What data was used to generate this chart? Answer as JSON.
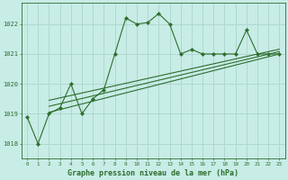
{
  "xlabel": "Graphe pression niveau de la mer (hPa)",
  "background_color": "#c8ece6",
  "grid_color": "#b0d8d0",
  "line_color": "#2d6e2d",
  "ylim": [
    1017.5,
    1022.7
  ],
  "xlim": [
    -0.5,
    23.5
  ],
  "yticks": [
    1018,
    1019,
    1020,
    1021,
    1022
  ],
  "xticks": [
    0,
    1,
    2,
    3,
    4,
    5,
    6,
    7,
    8,
    9,
    10,
    11,
    12,
    13,
    14,
    15,
    16,
    17,
    18,
    19,
    20,
    21,
    22,
    23
  ],
  "main_data": {
    "x": [
      0,
      1,
      2,
      3,
      4,
      5,
      6,
      7,
      8,
      9,
      10,
      11,
      12,
      13,
      14,
      15,
      16,
      17,
      18,
      19,
      20,
      21,
      22,
      23
    ],
    "y": [
      1018.9,
      1018.0,
      1019.0,
      1019.2,
      1020.0,
      1019.0,
      1019.5,
      1019.8,
      1021.0,
      1022.2,
      1022.0,
      1022.05,
      1022.35,
      1022.0,
      1021.0,
      1021.15,
      1021.0,
      1021.0,
      1021.0,
      1021.0,
      1021.8,
      1021.0,
      1021.0,
      1021.0
    ]
  },
  "trend_lines": [
    {
      "x": [
        2.0,
        23
      ],
      "y": [
        1019.05,
        1021.0
      ]
    },
    {
      "x": [
        2.0,
        23
      ],
      "y": [
        1019.25,
        1021.08
      ]
    },
    {
      "x": [
        2.0,
        23
      ],
      "y": [
        1019.45,
        1021.16
      ]
    }
  ]
}
